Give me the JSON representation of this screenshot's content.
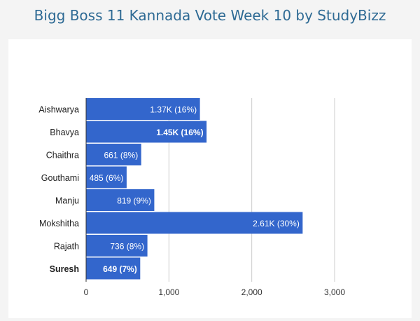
{
  "title": "Bigg Boss 11 Kannada Vote Week 10 by StudyBizz",
  "chart_data": {
    "type": "bar",
    "orientation": "horizontal",
    "title": "Bigg Boss 11 Kannada Vote Week 10 by StudyBizz",
    "categories": [
      "Aishwarya",
      "Bhavya",
      "Chaithra",
      "Gouthami",
      "Manju",
      "Mokshitha",
      "Rajath",
      "Suresh"
    ],
    "values": [
      1370,
      1450,
      661,
      485,
      819,
      2610,
      736,
      649
    ],
    "data_labels": [
      "1.37K (16%)",
      "1.45K (16%)",
      "661 (8%)",
      "485 (6%)",
      "819 (9%)",
      "2.61K (30%)",
      "736 (8%)",
      "649 (7%)"
    ],
    "bold_labels": [
      "Bhavya",
      "Suresh"
    ],
    "bold_categories": [
      "Suresh"
    ],
    "x_ticks": [
      "0",
      "1,000",
      "2,000",
      "3,000"
    ],
    "x_tick_values": [
      0,
      1000,
      2000,
      3000
    ],
    "xlim": [
      0,
      3000
    ],
    "xlabel": "",
    "ylabel": "",
    "grid": true,
    "bar_color": "#3366cc",
    "grid_color": "#cccccc"
  }
}
